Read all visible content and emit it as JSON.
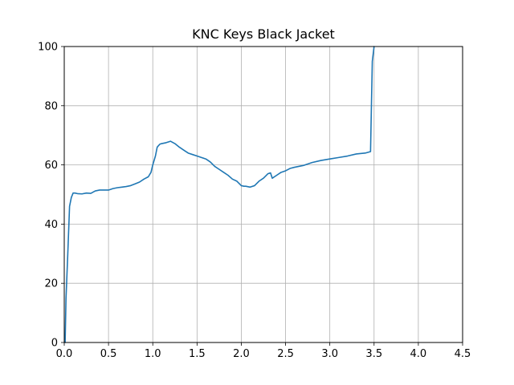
{
  "chart_data": {
    "type": "line",
    "title": "KNC Keys Black Jacket",
    "xlabel": "",
    "ylabel": "",
    "xlim": [
      0,
      4.5
    ],
    "ylim": [
      0,
      100
    ],
    "xticks": [
      0.0,
      0.5,
      1.0,
      1.5,
      2.0,
      2.5,
      3.0,
      3.5,
      4.0,
      4.5
    ],
    "xtick_labels": [
      "0.0",
      "0.5",
      "1.0",
      "1.5",
      "2.0",
      "2.5",
      "3.0",
      "3.5",
      "4.0",
      "4.5"
    ],
    "yticks": [
      0,
      20,
      40,
      60,
      80,
      100
    ],
    "ytick_labels": [
      "0",
      "20",
      "40",
      "60",
      "80",
      "100"
    ],
    "grid": true,
    "series": [
      {
        "color": "#1f77b4",
        "x": [
          0.01,
          0.02,
          0.04,
          0.06,
          0.08,
          0.1,
          0.12,
          0.15,
          0.2,
          0.25,
          0.3,
          0.35,
          0.4,
          0.45,
          0.5,
          0.55,
          0.6,
          0.65,
          0.7,
          0.75,
          0.8,
          0.85,
          0.9,
          0.95,
          0.98,
          1.0,
          1.03,
          1.05,
          1.08,
          1.1,
          1.15,
          1.2,
          1.25,
          1.3,
          1.35,
          1.4,
          1.45,
          1.5,
          1.55,
          1.6,
          1.65,
          1.7,
          1.75,
          1.8,
          1.85,
          1.9,
          1.95,
          2.0,
          2.03,
          2.05,
          2.1,
          2.15,
          2.2,
          2.25,
          2.3,
          2.33,
          2.35,
          2.4,
          2.45,
          2.5,
          2.55,
          2.6,
          2.7,
          2.8,
          2.9,
          3.0,
          3.1,
          3.2,
          3.3,
          3.4,
          3.46,
          3.47,
          3.48,
          3.5
        ],
        "y": [
          0,
          15,
          30,
          46,
          49,
          50.5,
          50.5,
          50.3,
          50.2,
          50.5,
          50.4,
          51.2,
          51.5,
          51.5,
          51.5,
          52.0,
          52.3,
          52.5,
          52.7,
          53.0,
          53.6,
          54.2,
          55.2,
          56.0,
          57.5,
          60.0,
          63.0,
          66.0,
          67.0,
          67.2,
          67.5,
          68.0,
          67.2,
          66.0,
          65.0,
          64.0,
          63.5,
          63.0,
          62.5,
          62.0,
          61.0,
          59.5,
          58.5,
          57.5,
          56.5,
          55.2,
          54.5,
          53.0,
          52.8,
          52.8,
          52.5,
          53.0,
          54.5,
          55.5,
          57.0,
          57.3,
          55.5,
          56.5,
          57.5,
          58.0,
          58.8,
          59.2,
          59.8,
          60.8,
          61.5,
          62.0,
          62.5,
          63.0,
          63.7,
          64.0,
          64.5,
          80.0,
          95.0,
          100
        ]
      }
    ]
  }
}
